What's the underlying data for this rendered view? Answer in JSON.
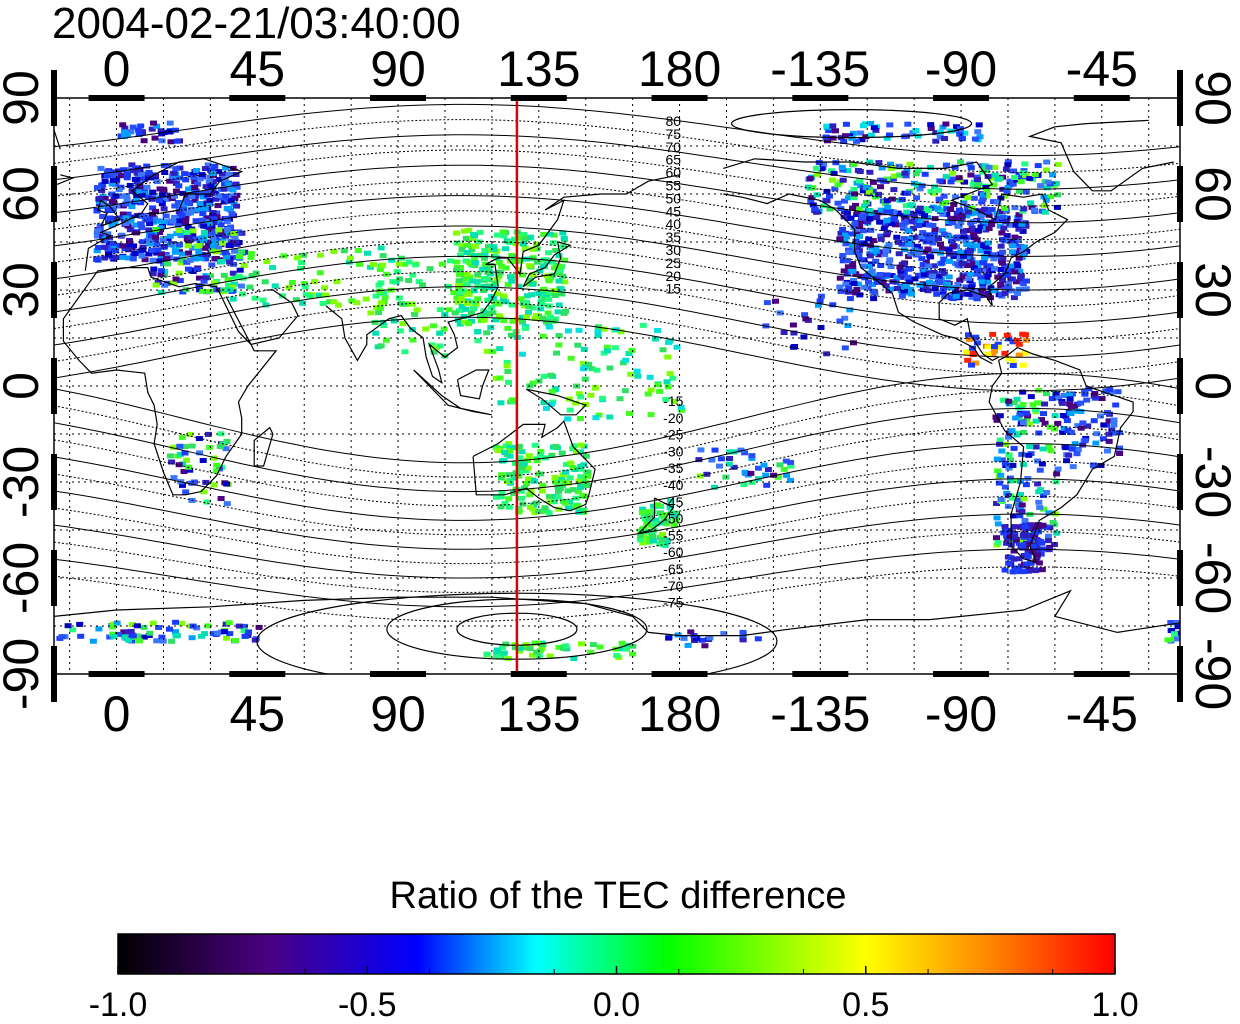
{
  "title": "2004-02-21/03:40:00",
  "map": {
    "lon_ticks": [
      0,
      45,
      90,
      135,
      180,
      -135,
      -90,
      -45
    ],
    "lat_ticks_left": [
      90,
      60,
      30,
      0,
      -30,
      -60,
      -90
    ],
    "lat_ticks_right": [
      90,
      60,
      30,
      0,
      -30,
      -60,
      -90
    ],
    "lon_range": [
      -20,
      340
    ],
    "lat_range": [
      -90,
      90
    ],
    "grid": true,
    "meridian_line": {
      "lon": 128,
      "color": "#e00000"
    },
    "contour_labels_north": [
      "80",
      "75",
      "70",
      "65",
      "60",
      "55",
      "50",
      "45",
      "40",
      "35",
      "30",
      "25",
      "20",
      "15"
    ],
    "contour_labels_south": [
      "-15",
      "-20",
      "-25",
      "-30",
      "-35",
      "-40",
      "-45",
      "-50",
      "-55",
      "-60",
      "-65",
      "-70",
      "-75"
    ]
  },
  "colorbar": {
    "title": "Ratio of the TEC difference",
    "ticks": [
      "-1.0",
      "-0.5",
      "0.0",
      "0.5",
      "1.0"
    ],
    "range": [
      -1.0,
      1.0
    ],
    "colors": [
      "#000000",
      "#4b0082",
      "#0000ff",
      "#00ffff",
      "#00ff00",
      "#ffff00",
      "#ff8000",
      "#ff0000"
    ]
  }
}
